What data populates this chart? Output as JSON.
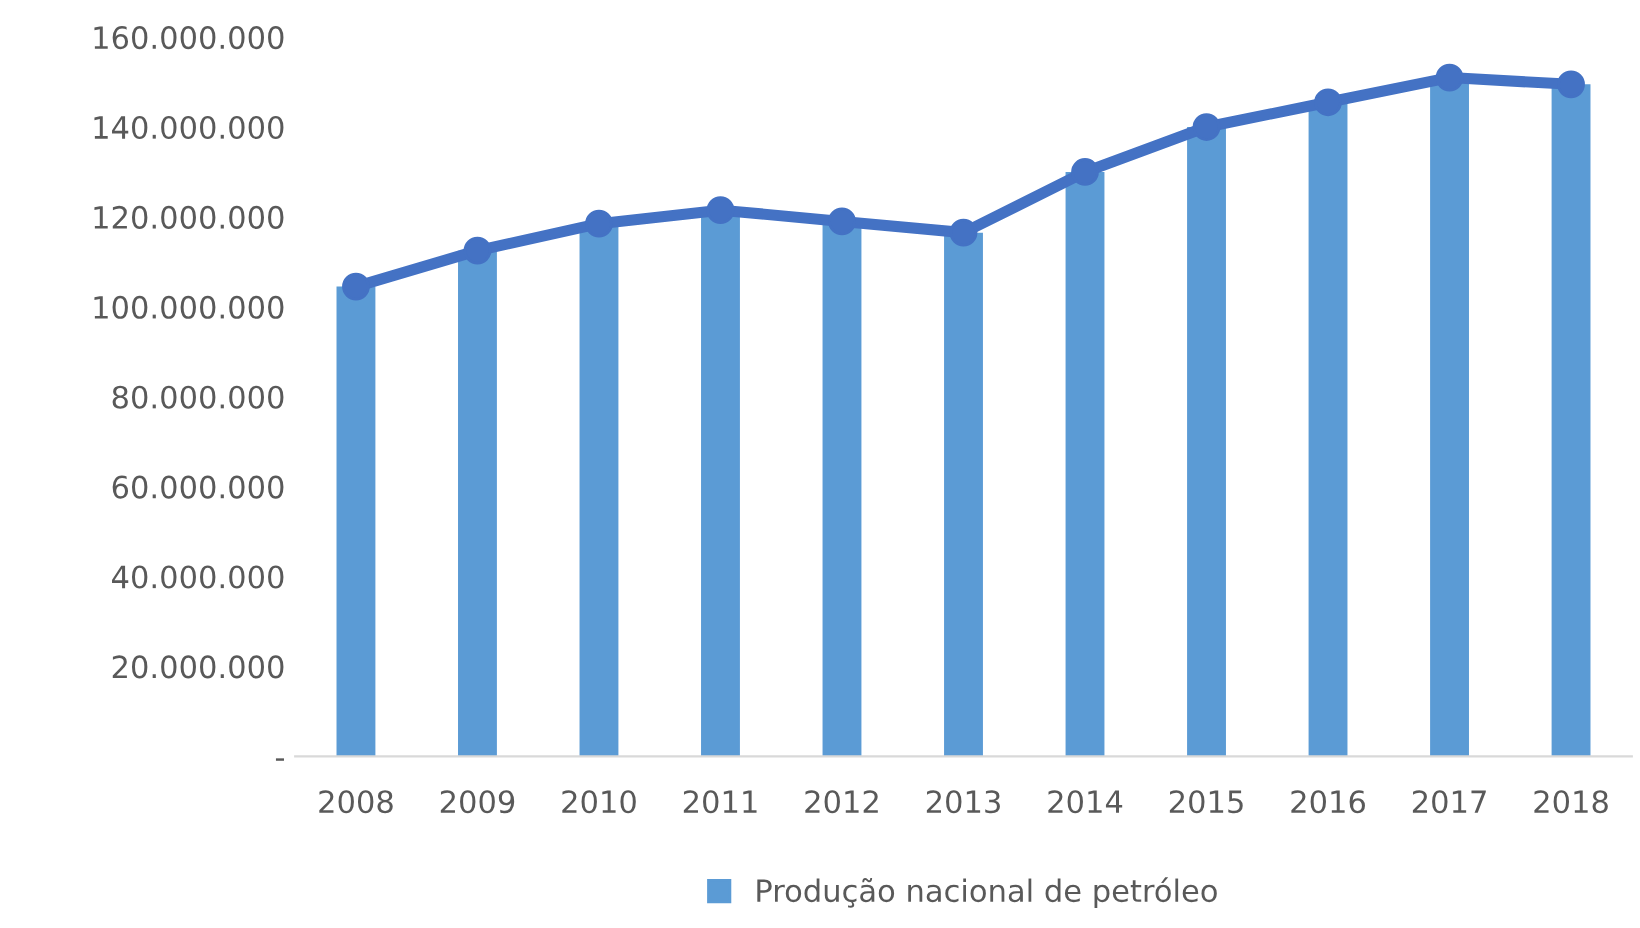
{
  "chart_data": {
    "type": "bar",
    "categories": [
      "2008",
      "2009",
      "2010",
      "2011",
      "2012",
      "2013",
      "2014",
      "2015",
      "2016",
      "2017",
      "2018"
    ],
    "series": [
      {
        "name": "Produção nacional de petróleo",
        "color": "#5b9bd5",
        "values": [
          104500000,
          112500000,
          118500000,
          121500000,
          119000000,
          116500000,
          130000000,
          140000000,
          145500000,
          151000000,
          149500000
        ]
      },
      {
        "type": "line",
        "color": "#4472c4",
        "marker": "circle",
        "values": [
          104500000,
          112500000,
          118500000,
          121500000,
          119000000,
          116500000,
          130000000,
          140000000,
          145500000,
          151000000,
          149500000
        ]
      }
    ],
    "ylim": [
      0,
      160000000
    ],
    "yticks": [
      {
        "value": 0,
        "label": "-"
      },
      {
        "value": 20000000,
        "label": "20.000.000"
      },
      {
        "value": 40000000,
        "label": "40.000.000"
      },
      {
        "value": 60000000,
        "label": "60.000.000"
      },
      {
        "value": 80000000,
        "label": "80.000.000"
      },
      {
        "value": 100000000,
        "label": "100.000.000"
      },
      {
        "value": 120000000,
        "label": "120.000.000"
      },
      {
        "value": 140000000,
        "label": "140.000.000"
      },
      {
        "value": 160000000,
        "label": "160.000.000"
      }
    ],
    "legend": "bottom"
  }
}
